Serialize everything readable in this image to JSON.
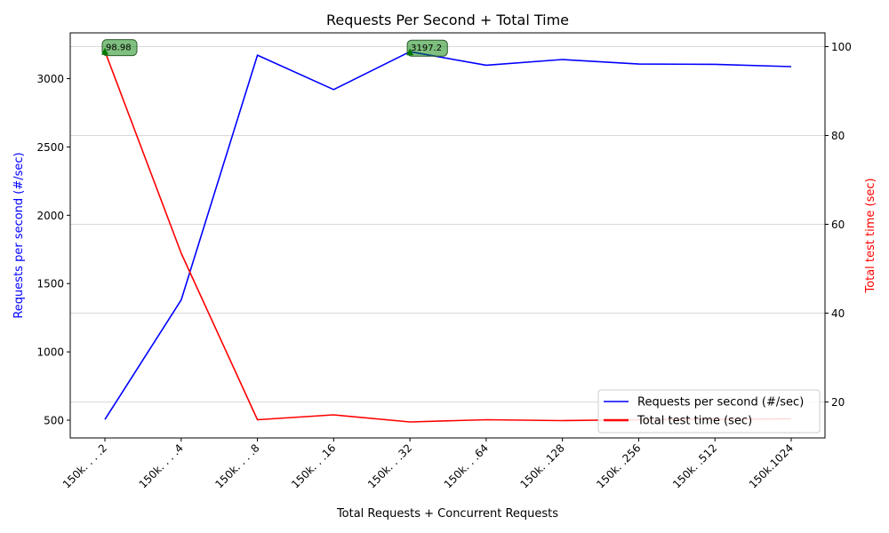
{
  "chart_data": {
    "type": "line",
    "title": "Requests Per Second + Total Time",
    "xlabel": "Total Requests + Concurrent Requests",
    "ylabel_left": "Requests per second (#/sec)",
    "ylabel_right": "Total test time (sec)",
    "categories": [
      "150k. . . .2",
      "150k. . . .4",
      "150k. . . .8",
      "150k. . .16",
      "150k. . .32",
      "150k. . .64",
      "150k. .128",
      "150k. .256",
      "150k. .512",
      "150k.1024"
    ],
    "series": [
      {
        "name": "Requests per second (#/sec)",
        "axis": "left",
        "color": "#0000ff",
        "values": [
          505,
          1380,
          3172,
          2920,
          3197.2,
          3098,
          3140,
          3107,
          3105,
          3088
        ]
      },
      {
        "name": "Total test time (sec)",
        "axis": "right",
        "color": "#ff0000",
        "values": [
          98.98,
          53.5,
          16.0,
          17.1,
          15.5,
          16.0,
          15.8,
          16.0,
          16.1,
          16.2
        ]
      }
    ],
    "ylim_left": [
      370,
      3335
    ],
    "yticks_left": [
      500,
      1000,
      1500,
      2000,
      2500,
      3000
    ],
    "ylim_right": [
      11.9,
      103.1
    ],
    "yticks_right": [
      20,
      40,
      60,
      80,
      100
    ],
    "grid": "horizontal",
    "legend": "lower-right",
    "annotations": [
      {
        "series": 1,
        "index": 0,
        "text": "98.98"
      },
      {
        "series": 0,
        "index": 4,
        "text": "3197.2"
      }
    ],
    "annotation_color": "#008000",
    "grid_color": "#d9d9d9"
  }
}
